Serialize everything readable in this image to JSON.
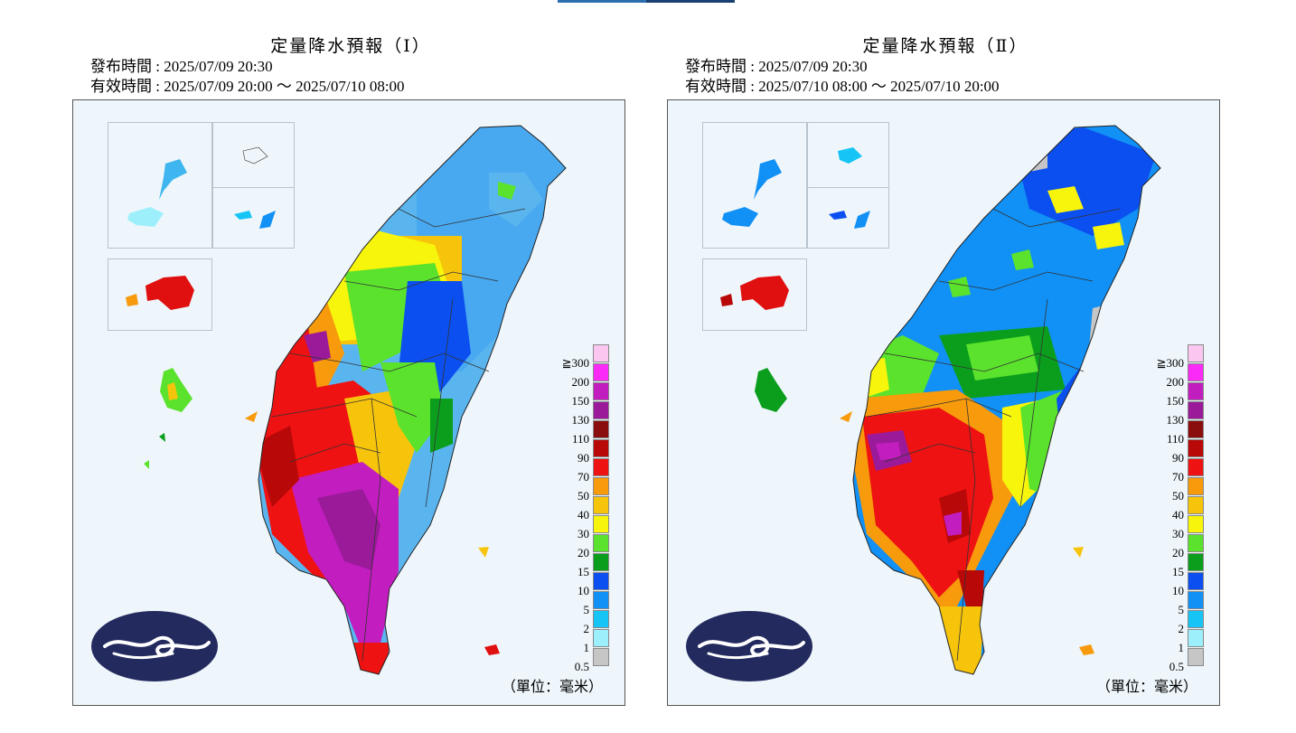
{
  "panels": [
    {
      "title": "定量降水預報（Ⅰ）",
      "issue_time": "發布時間 : 2025/07/09 20:30",
      "valid_time": "有效時間 : 2025/07/09 20:00 ～ 2025/07/10 08:00",
      "unit": "（單位：毫米）"
    },
    {
      "title": "定量降水預報（Ⅱ）",
      "issue_time": "發布時間 : 2025/07/09 20:30",
      "valid_time": "有效時間 : 2025/07/10 08:00 ～ 2025/07/10 20:00",
      "unit": "（單位：毫米）"
    }
  ],
  "legend": {
    "labels": [
      "≧300",
      "200",
      "150",
      "130",
      "110",
      "90",
      "70",
      "50",
      "40",
      "30",
      "20",
      "15",
      "10",
      "5",
      "2",
      "1",
      "0.5"
    ],
    "colors": [
      "#fbc7f0",
      "#fa2bf6",
      "#c21dbf",
      "#9a1a9a",
      "#8a0e0e",
      "#b80808",
      "#ee1212",
      "#f79a0c",
      "#f7c40c",
      "#f7f50c",
      "#5be22c",
      "#0b9e1d",
      "#0b4ff0",
      "#1190f5",
      "#16c5f5",
      "#9df0fb",
      "#c6c6c6"
    ]
  },
  "icons": {
    "logo": "cwa-logo-icon"
  }
}
